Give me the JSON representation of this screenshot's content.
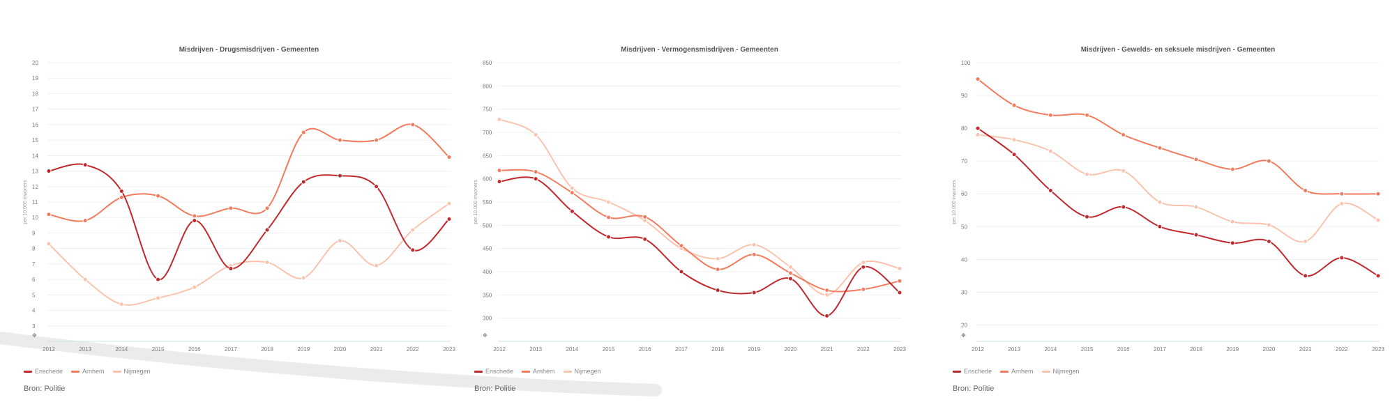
{
  "colors": {
    "Enschede": "#c0282c",
    "Arnhem": "#f27b5e",
    "Nijmegen": "#fbc3ad"
  },
  "legend": [
    "Enschede",
    "Arnhem",
    "Nijmegen"
  ],
  "source": "Bron: Politie",
  "chart_data": [
    {
      "type": "line",
      "title": "Misdrijven - Drugsmisdrijven - Gemeenten",
      "ylabel": "per 10.000 inwoners",
      "ylim": [
        2,
        20
      ],
      "yticks": [
        3,
        4,
        5,
        6,
        7,
        8,
        9,
        10,
        11,
        12,
        13,
        14,
        15,
        16,
        17,
        18,
        19,
        20
      ],
      "yticklabels": [
        "3",
        "4",
        "5",
        "6",
        "7",
        "8",
        "9",
        "10",
        "11",
        "12",
        "13",
        "14",
        "15",
        "16",
        "17",
        "18",
        "19",
        "20"
      ],
      "x": [
        "2012",
        "2013",
        "2014",
        "2015",
        "2016",
        "2017",
        "2018",
        "2019",
        "2020",
        "2021",
        "2022",
        "2023"
      ],
      "series": [
        {
          "name": "Enschede",
          "values": [
            13.0,
            13.4,
            11.7,
            6.0,
            9.8,
            6.7,
            9.2,
            12.3,
            12.7,
            12.0,
            7.9,
            9.9
          ]
        },
        {
          "name": "Arnhem",
          "values": [
            10.2,
            9.8,
            11.3,
            11.4,
            10.1,
            10.6,
            10.6,
            15.5,
            15.0,
            15.0,
            16.0,
            13.9
          ]
        },
        {
          "name": "Nijmegen",
          "values": [
            8.3,
            6.0,
            4.4,
            4.8,
            5.5,
            6.9,
            7.1,
            6.1,
            8.5,
            6.9,
            9.2,
            10.9
          ]
        }
      ]
    },
    {
      "type": "line",
      "title": "Misdrijven - Vermogensmisdrijven - Gemeenten",
      "ylabel": "per 10.000 inwoners",
      "ylim": [
        250,
        850
      ],
      "yticks": [
        300,
        350,
        400,
        450,
        500,
        550,
        600,
        650,
        700,
        750,
        800,
        850
      ],
      "yticklabels": [
        "300",
        "350",
        "400",
        "450",
        "500",
        "550",
        "600",
        "650",
        "700",
        "750",
        "800",
        "850"
      ],
      "x": [
        "2012",
        "2013",
        "2014",
        "2015",
        "2016",
        "2017",
        "2018",
        "2019",
        "2020",
        "2021",
        "2022",
        "2023"
      ],
      "series": [
        {
          "name": "Enschede",
          "values": [
            594,
            600,
            530,
            475,
            470,
            400,
            360,
            355,
            385,
            305,
            410,
            355
          ]
        },
        {
          "name": "Arnhem",
          "values": [
            618,
            615,
            570,
            517,
            518,
            456,
            405,
            437,
            397,
            360,
            362,
            380
          ]
        },
        {
          "name": "Nijmegen",
          "values": [
            728,
            695,
            580,
            550,
            510,
            450,
            428,
            458,
            410,
            350,
            420,
            407
          ]
        }
      ]
    },
    {
      "type": "line",
      "title": "Misdrijven - Gewelds- en seksuele misdrijven - Gemeenten",
      "ylabel": "per 10.000 inwoners",
      "ylim": [
        15,
        100
      ],
      "yticks": [
        20,
        30,
        40,
        50,
        60,
        70,
        80,
        90,
        100
      ],
      "yticklabels": [
        "20",
        "30",
        "40",
        "50",
        "60",
        "70",
        "80",
        "90",
        "100"
      ],
      "x": [
        "2012",
        "2013",
        "2014",
        "2015",
        "2016",
        "2017",
        "2018",
        "2019",
        "2020",
        "2021",
        "2022",
        "2023"
      ],
      "series": [
        {
          "name": "Enschede",
          "values": [
            80,
            72,
            61,
            53,
            56,
            50,
            47.5,
            45,
            45.5,
            35,
            40.5,
            35
          ]
        },
        {
          "name": "Arnhem",
          "values": [
            95,
            87,
            84,
            84,
            78,
            74,
            70.5,
            67.5,
            70,
            61,
            60,
            60
          ]
        },
        {
          "name": "Nijmegen",
          "values": [
            78,
            76.5,
            73,
            66,
            67,
            57.5,
            56,
            51.5,
            50.5,
            45.5,
            57,
            52
          ]
        }
      ]
    }
  ]
}
